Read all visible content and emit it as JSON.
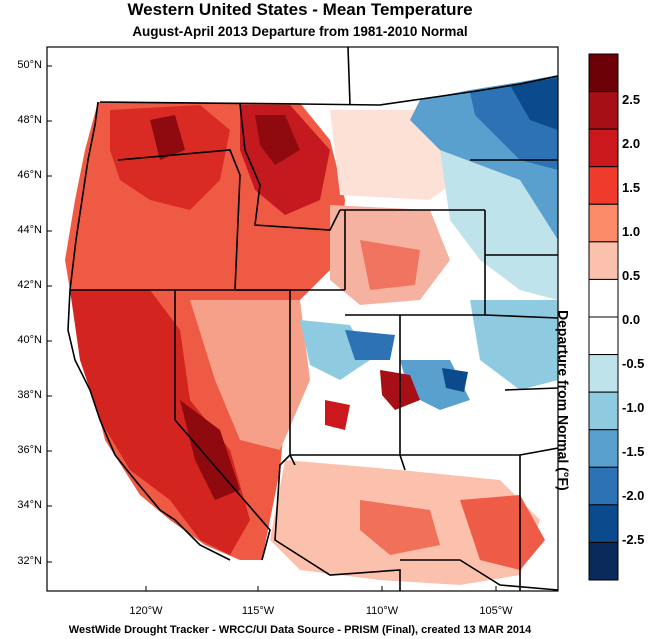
{
  "title": "Western United States - Mean Temperature",
  "subtitle": "August-April 2013  Departure from 1981-2010 Normal",
  "footer": "WestWide Drought Tracker - WRCC/UI  Data Source - PRISM (Final), created 13 MAR 2014",
  "lat_labels": [
    "50°N",
    "48°N",
    "46°N",
    "44°N",
    "42°N",
    "40°N",
    "38°N",
    "36°N",
    "34°N",
    "32°N"
  ],
  "lon_labels": [
    "120°W",
    "115°W",
    "110°W",
    "105°W"
  ],
  "colorbar": {
    "title": "Departure from Normal (°F)",
    "labels": [
      "2.5",
      "2.0",
      "1.5",
      "1.0",
      "0.5",
      "0.0",
      "-0.5",
      "-1.0",
      "-1.5",
      "-2.0",
      "-2.5"
    ],
    "colors": [
      "#6b0007",
      "#a50f15",
      "#cb181d",
      "#ef3b2c",
      "#fb8a68",
      "#fcc1ad",
      "#ffffff",
      "#ffffff",
      "#bfe3ea",
      "#8fcbe0",
      "#5aa0cf",
      "#2c72b5",
      "#0b4a8c",
      "#0b2a5c"
    ]
  }
}
